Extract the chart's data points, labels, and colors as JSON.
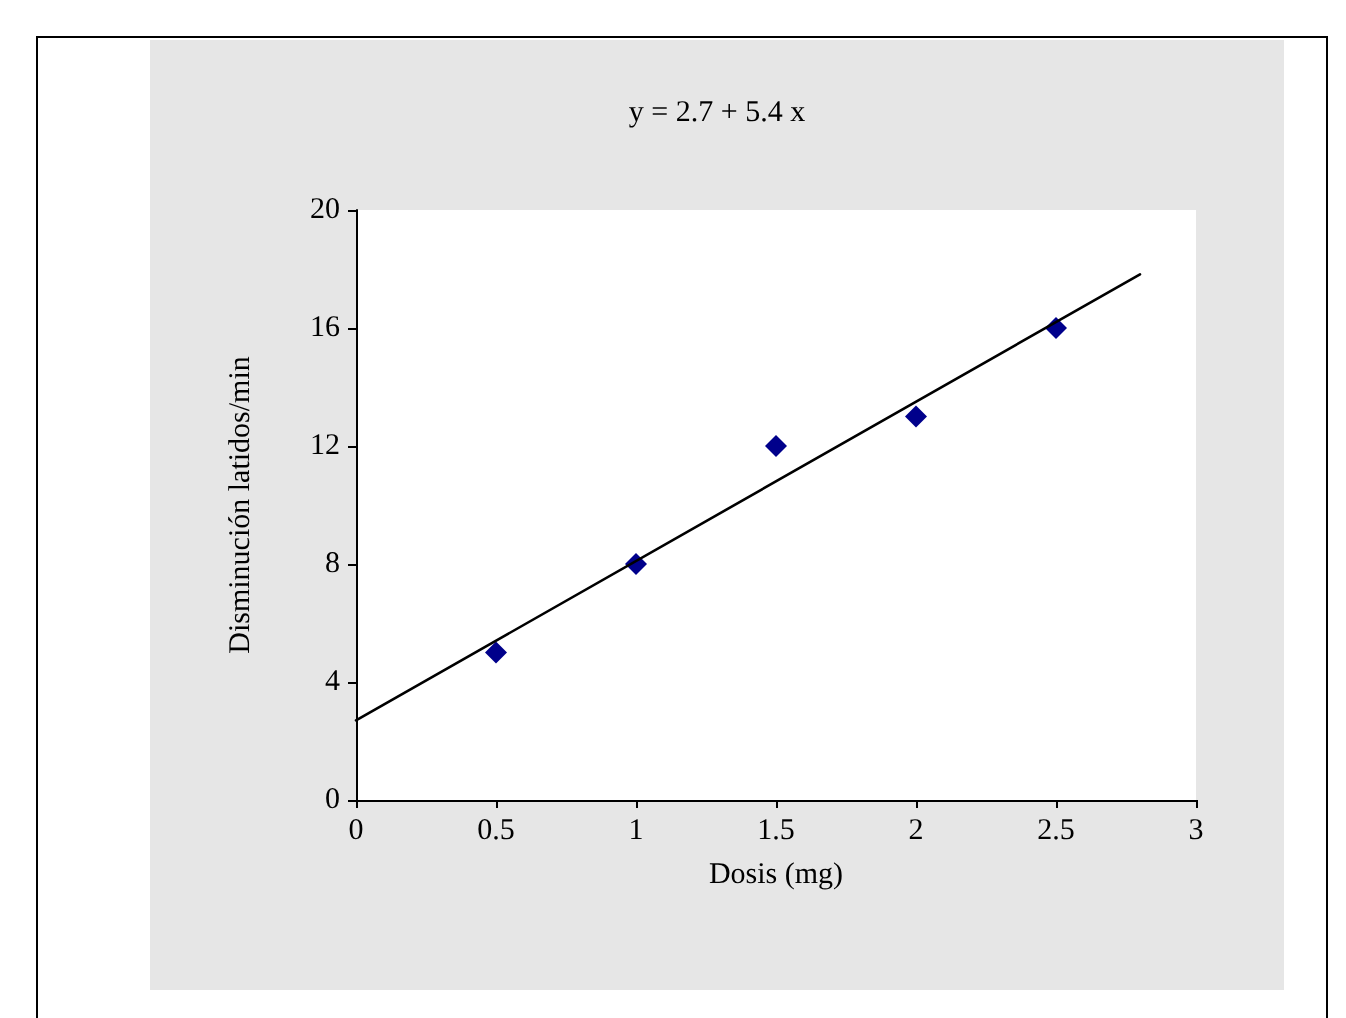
{
  "chart_data": {
    "type": "scatter",
    "title": "y = 2.7 + 5.4 x",
    "xlabel": "Dosis (mg)",
    "ylabel": "Disminución latidos/min",
    "x": [
      0.5,
      1,
      1.5,
      2,
      2.5
    ],
    "series": [
      {
        "color": "#00008b",
        "marker": "diamond",
        "values": [
          5,
          8,
          12,
          13,
          16
        ]
      },
      {
        "type": "line",
        "color": "#000000",
        "marker": "none",
        "line_style": "solid",
        "x": [
          0,
          2.8
        ],
        "values": [
          2.7,
          17.82
        ]
      }
    ],
    "xlim": [
      0,
      3
    ],
    "xticks": [
      0,
      0.5,
      1,
      1.5,
      2,
      2.5,
      3
    ],
    "ylim": [
      0,
      20
    ],
    "yticks": [
      0,
      4,
      8,
      12,
      16,
      20
    ],
    "grid": false
  }
}
